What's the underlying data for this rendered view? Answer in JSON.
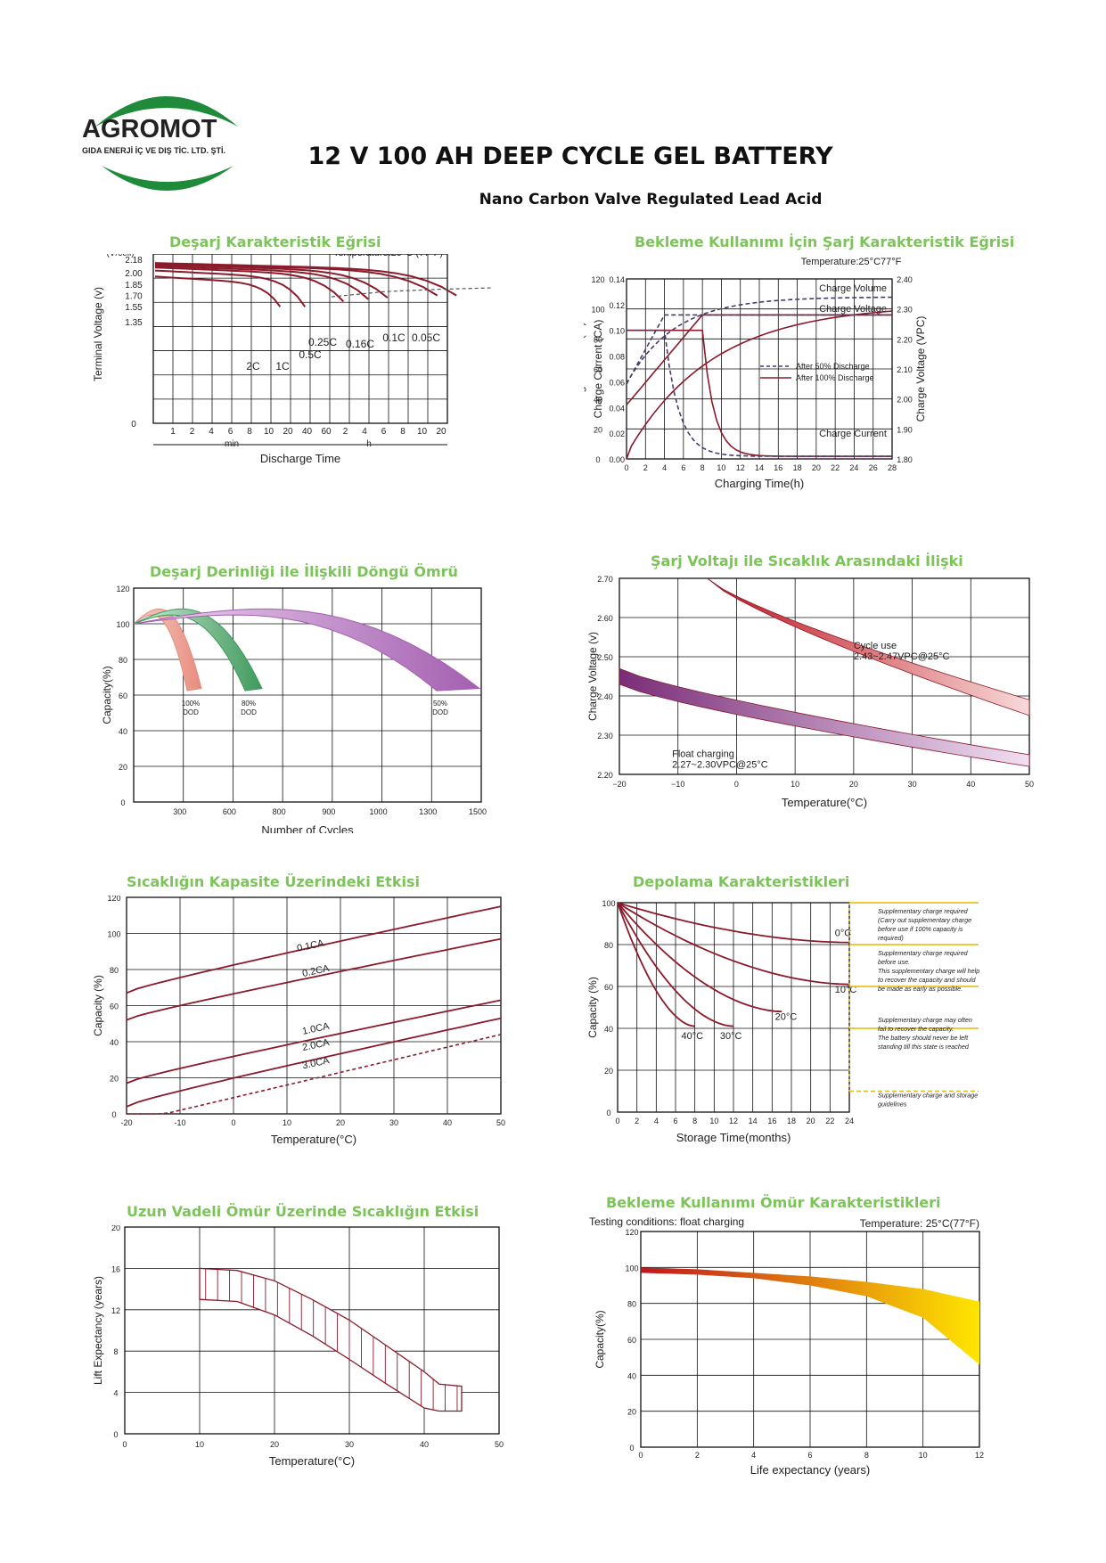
{
  "header": {
    "brand": "AGROMOT",
    "company": "GIDA ENERJİ İÇ VE DIŞ TİC. LTD. ŞTİ.",
    "title": "12 V 100 AH DEEP CYCLE GEL BATTERY",
    "subtitle": "Nano Carbon Valve Regulated Lead Acid"
  },
  "colors": {
    "accent": "#7cc35a",
    "curve": "#8b1a2b",
    "logo_green": "#1f8a3a",
    "logo_text": "#2e6b3b"
  },
  "chart_data": [
    {
      "id": "discharge",
      "type": "line",
      "title": "Deşarj Karakteristik Eğrisi",
      "note": "Temperature:25°C (77°F)",
      "xlabel": "Discharge  Time",
      "ylabel": "Terminal  Voltage  (v)",
      "yunit": "(V/cell)",
      "xticks": [
        "1",
        "2",
        "4",
        "6",
        "8",
        "10",
        "20",
        "40",
        "60",
        "2",
        "4",
        "6",
        "8",
        "10",
        "20"
      ],
      "xgroups": [
        "min",
        "h"
      ],
      "yticks": [
        "2.18",
        "2.00",
        "1.85",
        "1.70",
        "1.55",
        "1.35",
        "0"
      ],
      "ylim": [
        0,
        2.25
      ],
      "series": [
        {
          "name": "2C",
          "end_time": "15 min",
          "end_v": 1.65
        },
        {
          "name": "1C",
          "end_time": "40 min",
          "end_v": 1.65
        },
        {
          "name": "0.5C",
          "end_time": "1.5 h",
          "end_v": 1.72
        },
        {
          "name": "0.25C",
          "end_time": "3.5 h",
          "end_v": 1.75
        },
        {
          "name": "0.16C",
          "end_time": "6 h",
          "end_v": 1.77
        },
        {
          "name": "0.1C",
          "end_time": "10 h",
          "end_v": 1.8
        },
        {
          "name": "0.05C",
          "end_time": "20 h",
          "end_v": 1.8
        }
      ]
    },
    {
      "id": "standby_charge",
      "type": "line",
      "title": "Bekleme Kullanımı İçin Şarj Karakteristik Eğrisi",
      "note": "Temperature:25°C77°F",
      "xlabel": "Charging Time(h)",
      "ylabel_left1": "Charge  Volume  (%)",
      "ylabel_left2": "Charge  Current  (CA)",
      "ylabel_right": "Charge Voltage (VPC)",
      "x": [
        0,
        2,
        4,
        6,
        8,
        10,
        12,
        14,
        16,
        18,
        20,
        22,
        24,
        26,
        28
      ],
      "volume_ticks": [
        "0",
        "20",
        "40",
        "60",
        "80",
        "100",
        "120"
      ],
      "current_ticks": [
        "0.00",
        "0.02",
        "0.04",
        "0.06",
        "0.08",
        "0.10",
        "0.12",
        "0.14"
      ],
      "voltage_ticks": [
        "1.80",
        "1.90",
        "2.00",
        "2.10",
        "2.20",
        "2.30",
        "2.40"
      ],
      "labels": [
        "Charge Volume",
        "Charge Voltage",
        "Charge Current"
      ],
      "legend": [
        "After 50% Discharge",
        "After 100% Discharge"
      ]
    },
    {
      "id": "cycle_life",
      "type": "area",
      "title": "Deşarj Derinliği ile İlişkili Döngü Ömrü",
      "xlabel": "Number of Cycles",
      "ylabel": "Capacity(%)",
      "xticks": [
        "300",
        "600",
        "800",
        "900",
        "1000",
        "1300",
        "1500"
      ],
      "yticks": [
        "0",
        "20",
        "40",
        "60",
        "80",
        "100",
        "120"
      ],
      "series": [
        {
          "name": "100%",
          "sub": "DOD",
          "end_cycles_min": 300,
          "end_cycles_max": 400,
          "end_capacity": 60,
          "color": "#e88b7d"
        },
        {
          "name": "80%",
          "sub": "DOD",
          "end_cycles_min": 600,
          "end_cycles_max": 800,
          "end_capacity": 60,
          "color": "#3f9a5c"
        },
        {
          "name": "50%",
          "sub": "DOD",
          "end_cycles_min": 1300,
          "end_cycles_max": 1500,
          "end_capacity": 60,
          "color": "#a45fb0"
        }
      ]
    },
    {
      "id": "voltage_temp",
      "type": "area",
      "title": "Şarj Voltajı ile Sıcaklık Arasındaki İlişki",
      "xlabel": "Temperature(°C)",
      "ylabel": "Charge Voltage  (v)",
      "xticks": [
        "−20",
        "−10",
        "0",
        "10",
        "20",
        "30",
        "40",
        "50"
      ],
      "yticks": [
        "2.20",
        "2.30",
        "2.40",
        "2.50",
        "2.60",
        "2.70"
      ],
      "series": [
        {
          "name": "Cycle use",
          "range": "2.43~2.47VPC@25°C",
          "start": [
            -5,
            2.7
          ],
          "end": [
            50,
            2.35,
            2.39
          ]
        },
        {
          "name": "Float charging",
          "range": "2.27~2.30VPC@25°C",
          "start": [
            -20,
            2.43,
            2.47
          ],
          "end": [
            50,
            2.22,
            2.25
          ]
        }
      ]
    },
    {
      "id": "temp_capacity",
      "type": "line",
      "title": "Sıcaklığın Kapasite Üzerindeki Etkisi",
      "xlabel": "Temperature(°C)",
      "ylabel": "Capacity  (%)",
      "xticks": [
        "-20",
        "-10",
        "0",
        "10",
        "20",
        "30",
        "40",
        "50"
      ],
      "yticks": [
        "0",
        "20",
        "40",
        "60",
        "80",
        "100",
        "120"
      ],
      "series": [
        {
          "name": "0.1CA",
          "x": [
            -20,
            50
          ],
          "y": [
            67,
            115
          ]
        },
        {
          "name": "0.2CA",
          "x": [
            -20,
            50
          ],
          "y": [
            52,
            97
          ]
        },
        {
          "name": "1.0CA",
          "x": [
            -20,
            50
          ],
          "y": [
            17,
            63
          ]
        },
        {
          "name": "2.0CA",
          "x": [
            -20,
            50
          ],
          "y": [
            4,
            53
          ]
        },
        {
          "name": "3.0CA",
          "x": [
            -20,
            50
          ],
          "y": [
            0,
            44
          ]
        }
      ]
    },
    {
      "id": "storage",
      "type": "line",
      "title": "Depolama Karakteristikleri",
      "xlabel": "Storage  Time(months)",
      "ylabel": "Capacity  (%)",
      "xticks": [
        "0",
        "2",
        "4",
        "6",
        "8",
        "10",
        "12",
        "14",
        "16",
        "18",
        "20",
        "22",
        "24"
      ],
      "yticks": [
        "0",
        "20",
        "40",
        "60",
        "80",
        "100"
      ],
      "series": [
        {
          "name": "0°C",
          "end_month": 24,
          "end_capacity": 81
        },
        {
          "name": "10°C",
          "end_month": 24,
          "end_capacity": 61
        },
        {
          "name": "20°C",
          "end_month": 17,
          "end_capacity": 48
        },
        {
          "name": "30°C",
          "end_month": 12,
          "end_capacity": 41
        },
        {
          "name": "40°C",
          "end_month": 8,
          "end_capacity": 41
        }
      ],
      "notes": [
        {
          "lines": [
            "Supplementary charge required",
            "(Carry out supplementary charge",
            "before use if 100% capacity is",
            "required)"
          ]
        },
        {
          "lines": [
            "Supplementary charge required",
            "before use.",
            "This supplementary charge will help",
            "to recover the capacity and should",
            "be made  as early as possible."
          ]
        },
        {
          "lines": [
            "Supplementary charge may often",
            "fail to recover the capacity.",
            "The battery should never be left",
            "standing till this state is reached"
          ]
        },
        {
          "lines": [
            "Supplementary charge and storage",
            "guidelines"
          ]
        }
      ]
    },
    {
      "id": "life_temp",
      "type": "area",
      "title": "Uzun Vadeli Ömür Üzerinde Sıcaklığın Etkisi",
      "xlabel": "Temperature(°C)",
      "ylabel": "Lift Expectancy  (years)",
      "xticks": [
        "0",
        "10",
        "20",
        "30",
        "40",
        "50"
      ],
      "yticks": [
        "0",
        "4",
        "8",
        "12",
        "16",
        "20"
      ],
      "upper": {
        "x": [
          10,
          15,
          20,
          25,
          30,
          35,
          40,
          42,
          45
        ],
        "y": [
          16,
          15.8,
          14.8,
          13,
          11,
          8.5,
          6,
          4.8,
          4.6
        ]
      },
      "lower": {
        "x": [
          10,
          15,
          20,
          25,
          30,
          35,
          40,
          42,
          45
        ],
        "y": [
          13,
          12.8,
          11.5,
          9.5,
          7.2,
          4.8,
          2.5,
          2.2,
          2.2
        ]
      }
    },
    {
      "id": "float_life",
      "type": "area",
      "title": "Bekleme Kullanımı Ömür Karakteristikleri",
      "note_left": "Testing conditions: float charging",
      "note_right": "Temperature: 25°C(77°F)",
      "xlabel": "Life expectancy (years)",
      "ylabel": "Capacity(%)",
      "xticks": [
        "0",
        "2",
        "4",
        "6",
        "8",
        "10",
        "12"
      ],
      "yticks": [
        "0",
        "20",
        "40",
        "60",
        "80",
        "100",
        "120"
      ],
      "upper": {
        "x": [
          0,
          2,
          4,
          6,
          8,
          10,
          12
        ],
        "y": [
          100,
          99,
          97,
          95,
          92,
          88,
          81
        ]
      },
      "lower": {
        "x": [
          0,
          2,
          4,
          6,
          8,
          10,
          12
        ],
        "y": [
          97,
          96,
          94,
          90,
          84,
          72,
          46
        ]
      }
    }
  ]
}
